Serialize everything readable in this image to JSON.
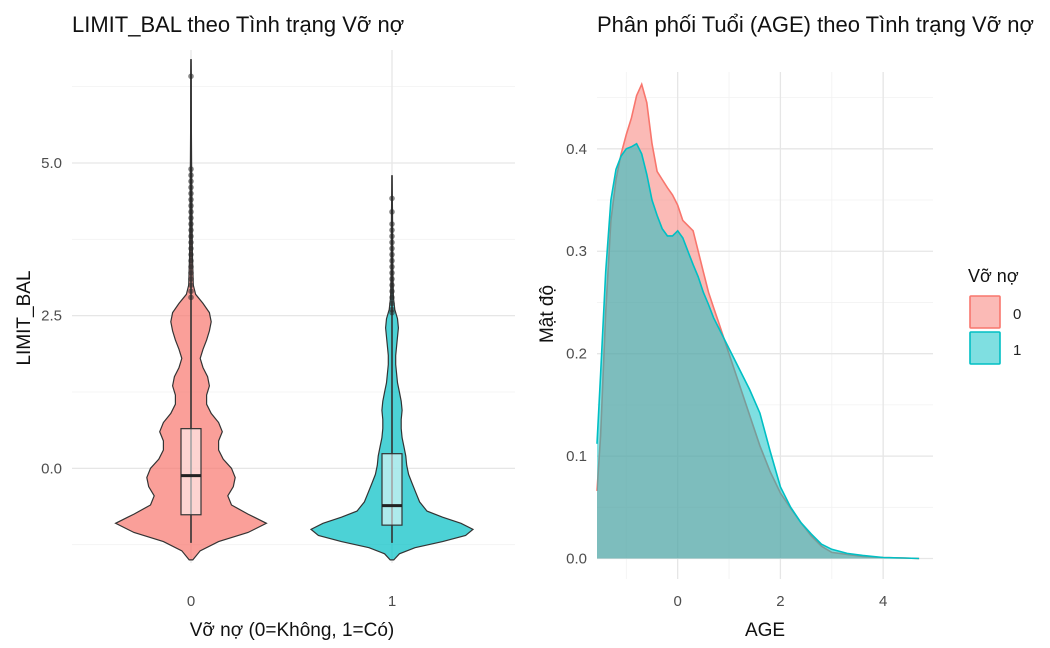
{
  "chart_data": [
    {
      "type": "violin",
      "title": "LIMIT_BAL theo Tình trạng Vỡ nợ",
      "xlabel": "Vỡ nợ (0=Không, 1=Có)",
      "ylabel": "LIMIT_BAL",
      "categories": [
        "0",
        "1"
      ],
      "ylim": [
        -1.55,
        6.85
      ],
      "yticks": [
        0.0,
        2.5,
        5.0
      ],
      "ytick_labels": [
        "0.0",
        "2.5",
        "5.0"
      ],
      "grid": true,
      "colors": [
        "#F8766D",
        "#00BFC4"
      ],
      "groups": [
        {
          "name": "0",
          "box": {
            "q1": -0.76,
            "median": -0.12,
            "q3": 0.65,
            "whisker_low": -1.22,
            "whisker_high": 2.76
          },
          "outliers": [
            2.8,
            2.9,
            3.0,
            3.1,
            3.2,
            3.3,
            3.4,
            3.5,
            3.6,
            3.7,
            3.8,
            3.9,
            4.0,
            4.1,
            4.2,
            4.3,
            4.4,
            4.5,
            4.6,
            4.7,
            4.8,
            4.9,
            6.42
          ],
          "max": 6.7,
          "density": [
            [
              -1.5,
              0.02
            ],
            [
              -1.35,
              0.1
            ],
            [
              -1.2,
              0.3
            ],
            [
              -1.05,
              0.62
            ],
            [
              -0.9,
              0.82
            ],
            [
              -0.75,
              0.62
            ],
            [
              -0.6,
              0.44
            ],
            [
              -0.45,
              0.4
            ],
            [
              -0.3,
              0.46
            ],
            [
              -0.15,
              0.48
            ],
            [
              0.0,
              0.44
            ],
            [
              0.15,
              0.35
            ],
            [
              0.3,
              0.3
            ],
            [
              0.45,
              0.3
            ],
            [
              0.6,
              0.34
            ],
            [
              0.75,
              0.3
            ],
            [
              0.9,
              0.22
            ],
            [
              1.05,
              0.17
            ],
            [
              1.2,
              0.17
            ],
            [
              1.35,
              0.2
            ],
            [
              1.5,
              0.18
            ],
            [
              1.65,
              0.13
            ],
            [
              1.8,
              0.1
            ],
            [
              1.95,
              0.13
            ],
            [
              2.1,
              0.17
            ],
            [
              2.25,
              0.2
            ],
            [
              2.4,
              0.22
            ],
            [
              2.55,
              0.2
            ],
            [
              2.7,
              0.13
            ],
            [
              2.85,
              0.05
            ],
            [
              3.0,
              0.025
            ],
            [
              3.5,
              0.015
            ],
            [
              4.0,
              0.012
            ],
            [
              4.5,
              0.01
            ],
            [
              5.0,
              0.006
            ],
            [
              5.5,
              0.004
            ],
            [
              6.0,
              0.003
            ],
            [
              6.5,
              0.002
            ],
            [
              6.7,
              0.0
            ]
          ]
        },
        {
          "name": "1",
          "box": {
            "q1": -0.93,
            "median": -0.61,
            "q3": 0.24,
            "whisker_low": -1.22,
            "whisker_high": 2.5
          },
          "outliers": [
            2.55,
            2.6,
            2.7,
            2.8,
            2.9,
            3.0,
            3.1,
            3.2,
            3.3,
            3.4,
            3.5,
            3.6,
            3.7,
            3.8,
            3.9,
            4.0,
            4.2,
            4.42
          ],
          "max": 4.8,
          "density": [
            [
              -1.5,
              0.02
            ],
            [
              -1.4,
              0.08
            ],
            [
              -1.3,
              0.25
            ],
            [
              -1.2,
              0.55
            ],
            [
              -1.1,
              0.8
            ],
            [
              -1.0,
              0.88
            ],
            [
              -0.9,
              0.75
            ],
            [
              -0.8,
              0.55
            ],
            [
              -0.7,
              0.38
            ],
            [
              -0.55,
              0.3
            ],
            [
              -0.4,
              0.26
            ],
            [
              -0.25,
              0.22
            ],
            [
              -0.1,
              0.18
            ],
            [
              0.05,
              0.16
            ],
            [
              0.2,
              0.15
            ],
            [
              0.35,
              0.13
            ],
            [
              0.5,
              0.11
            ],
            [
              0.65,
              0.1
            ],
            [
              0.8,
              0.1
            ],
            [
              0.95,
              0.11
            ],
            [
              1.1,
              0.1
            ],
            [
              1.25,
              0.08
            ],
            [
              1.4,
              0.06
            ],
            [
              1.55,
              0.05
            ],
            [
              1.7,
              0.04
            ],
            [
              1.85,
              0.04
            ],
            [
              2.0,
              0.05
            ],
            [
              2.15,
              0.06
            ],
            [
              2.3,
              0.07
            ],
            [
              2.45,
              0.06
            ],
            [
              2.6,
              0.03
            ],
            [
              2.8,
              0.015
            ],
            [
              3.2,
              0.01
            ],
            [
              3.7,
              0.008
            ],
            [
              4.2,
              0.005
            ],
            [
              4.8,
              0.0
            ]
          ]
        }
      ]
    },
    {
      "type": "density",
      "title": "Phân phối Tuổi (AGE) theo Tình trạng Vỡ nợ",
      "xlabel": "AGE",
      "ylabel": "Mật độ",
      "xlim": [
        -1.57,
        4.97
      ],
      "ylim": [
        -0.02,
        0.475
      ],
      "xticks": [
        0,
        2,
        4
      ],
      "yticks": [
        0.0,
        0.1,
        0.2,
        0.3,
        0.4
      ],
      "ytick_labels": [
        "0.0",
        "0.1",
        "0.2",
        "0.3",
        "0.4"
      ],
      "grid": true,
      "legend": {
        "title": "Vỡ nợ",
        "position": "right",
        "entries": [
          "0",
          "1"
        ]
      },
      "series": [
        {
          "name": "0",
          "color": "#F8766D",
          "x": [
            -1.57,
            -1.5,
            -1.4,
            -1.3,
            -1.2,
            -1.1,
            -1.0,
            -0.9,
            -0.8,
            -0.7,
            -0.6,
            -0.5,
            -0.4,
            -0.3,
            -0.2,
            -0.1,
            0.0,
            0.1,
            0.2,
            0.3,
            0.4,
            0.5,
            0.6,
            0.7,
            0.8,
            0.9,
            1.0,
            1.2,
            1.4,
            1.6,
            1.8,
            2.0,
            2.2,
            2.4,
            2.6,
            2.8,
            3.0,
            3.3,
            3.6,
            4.0,
            4.4,
            4.7
          ],
          "y": [
            0.066,
            0.12,
            0.24,
            0.33,
            0.37,
            0.395,
            0.414,
            0.43,
            0.452,
            0.463,
            0.445,
            0.405,
            0.378,
            0.37,
            0.362,
            0.355,
            0.345,
            0.33,
            0.325,
            0.32,
            0.3,
            0.28,
            0.26,
            0.245,
            0.23,
            0.215,
            0.2,
            0.17,
            0.14,
            0.11,
            0.085,
            0.064,
            0.049,
            0.035,
            0.022,
            0.012,
            0.006,
            0.004,
            0.002,
            0.001,
            0.0005,
            0.0
          ]
        },
        {
          "name": "1",
          "color": "#00BFC4",
          "x": [
            -1.57,
            -1.5,
            -1.4,
            -1.3,
            -1.2,
            -1.1,
            -1.0,
            -0.9,
            -0.8,
            -0.7,
            -0.6,
            -0.5,
            -0.4,
            -0.3,
            -0.2,
            -0.1,
            0.0,
            0.1,
            0.2,
            0.3,
            0.4,
            0.5,
            0.6,
            0.7,
            0.8,
            0.9,
            1.0,
            1.2,
            1.4,
            1.6,
            1.8,
            2.0,
            2.2,
            2.4,
            2.6,
            2.8,
            3.0,
            3.3,
            3.6,
            4.0,
            4.4,
            4.7
          ],
          "y": [
            0.112,
            0.18,
            0.28,
            0.35,
            0.38,
            0.393,
            0.4,
            0.402,
            0.405,
            0.395,
            0.375,
            0.35,
            0.335,
            0.322,
            0.315,
            0.315,
            0.32,
            0.313,
            0.3,
            0.287,
            0.275,
            0.26,
            0.248,
            0.235,
            0.225,
            0.215,
            0.205,
            0.185,
            0.165,
            0.142,
            0.105,
            0.07,
            0.05,
            0.035,
            0.024,
            0.014,
            0.009,
            0.005,
            0.003,
            0.001,
            0.0005,
            0.0
          ]
        }
      ]
    }
  ]
}
